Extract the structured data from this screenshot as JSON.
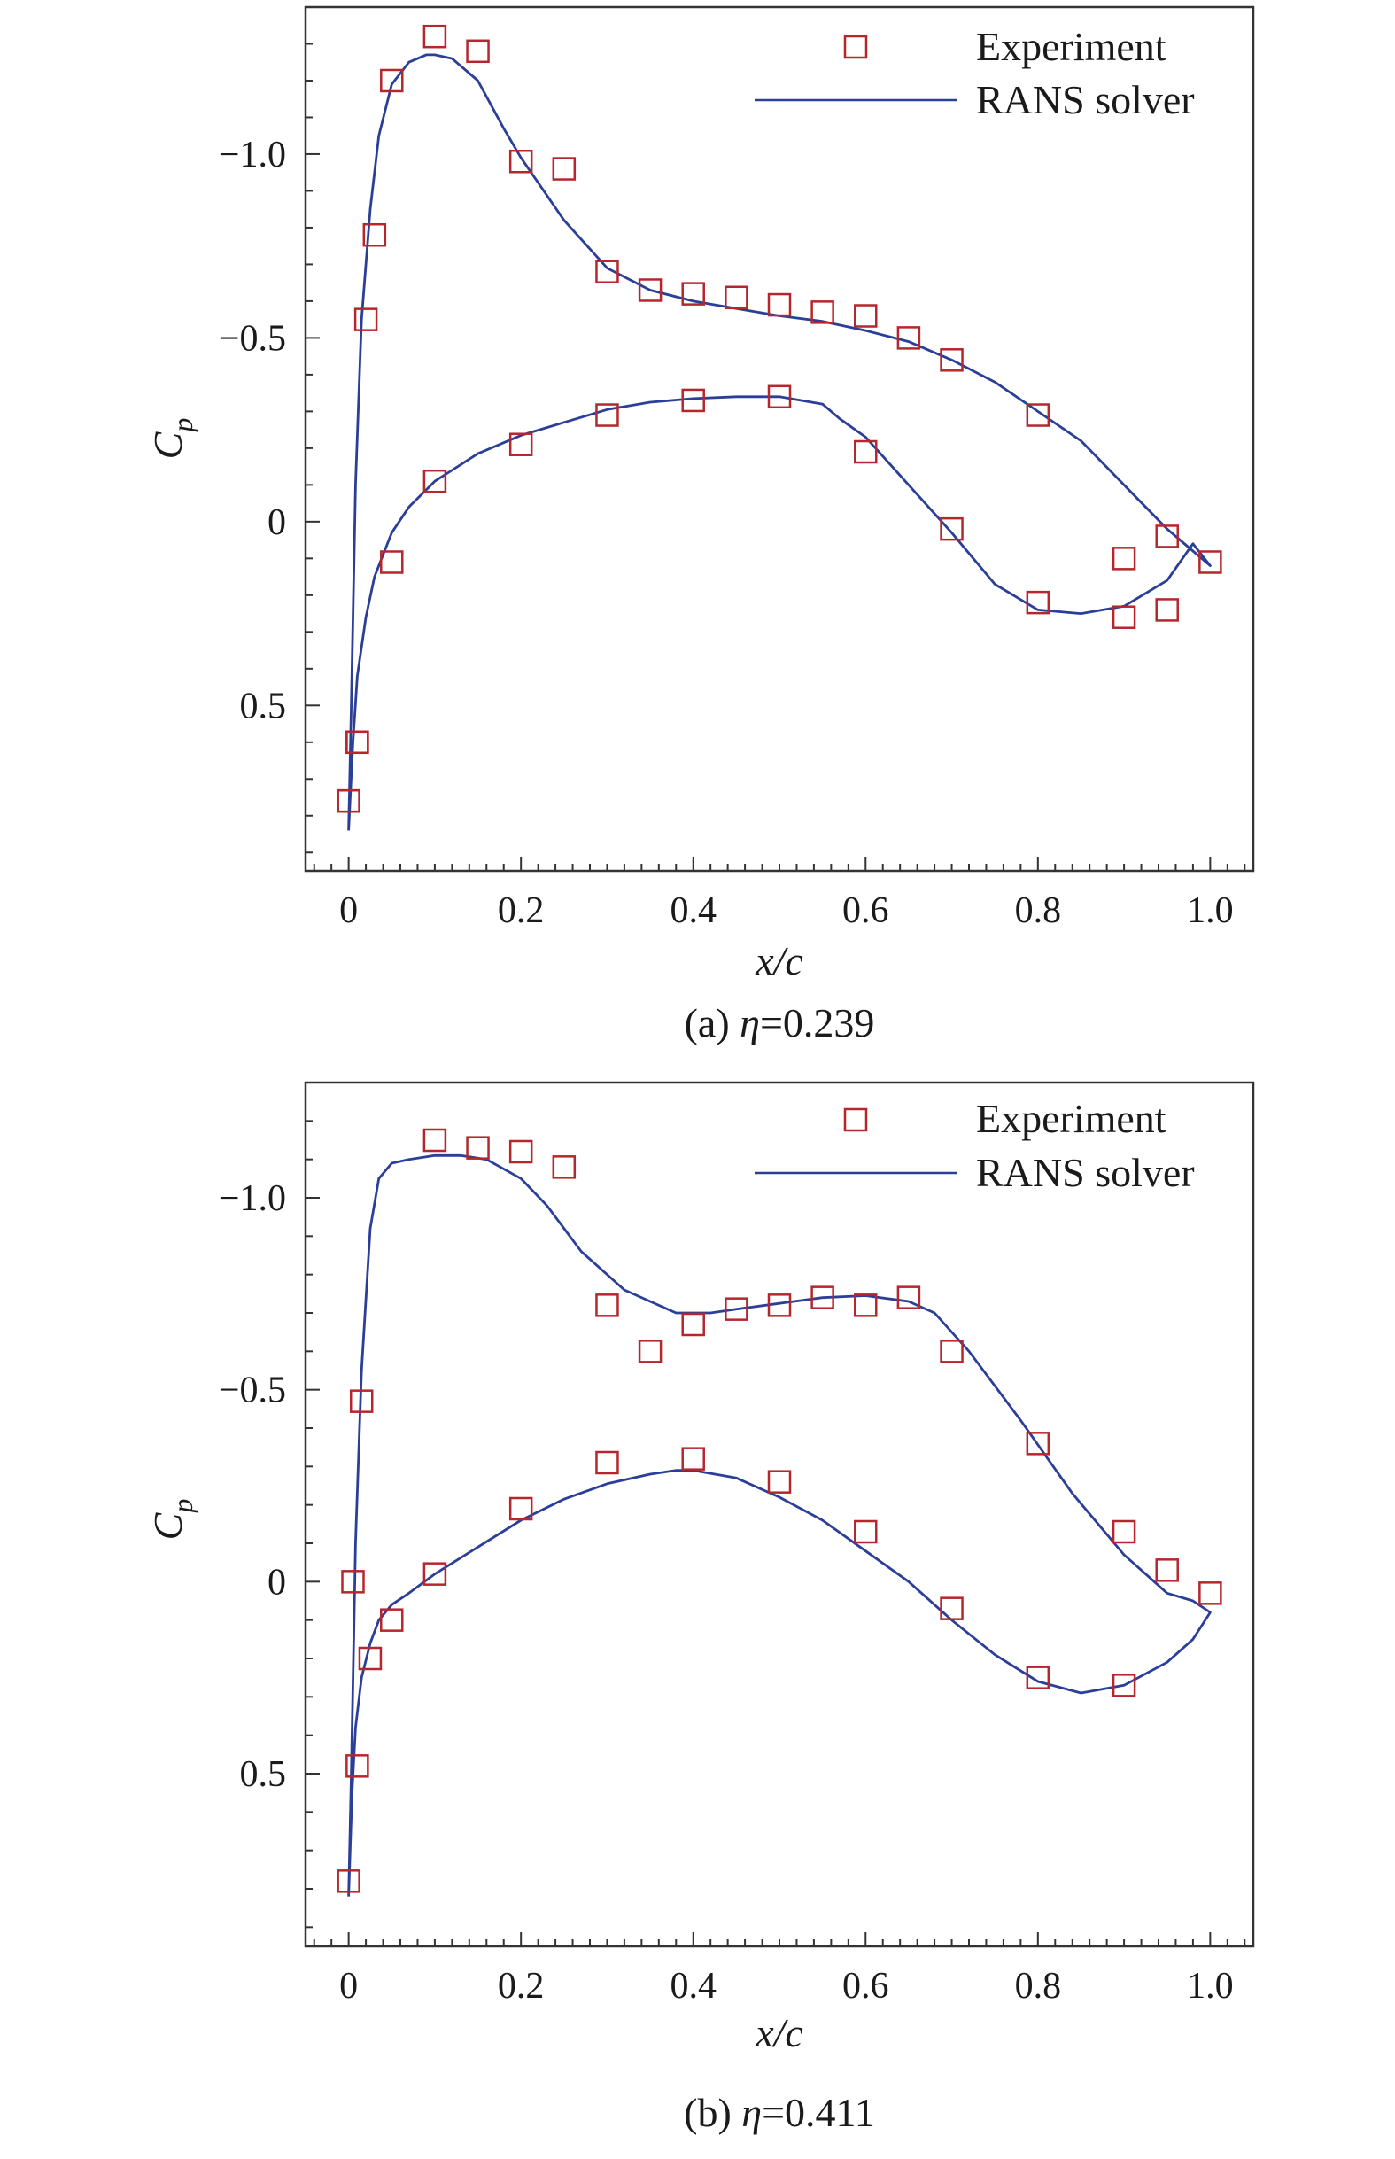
{
  "colors": {
    "experiment": "#b5272d",
    "rans": "#2b3f99",
    "axis": "#333333"
  },
  "chart_data": [
    {
      "type": "scatter",
      "caption_prefix": "(a) ",
      "caption_symbol": "η",
      "caption_value": "=0.239",
      "xlabel": "x/c",
      "ylabel_main": "C",
      "ylabel_sub": "p",
      "y_inverted": true,
      "xlim": [
        -0.05,
        1.05
      ],
      "ylim": [
        0.95,
        -1.4
      ],
      "xticks": [
        0,
        0.2,
        0.4,
        0.6,
        0.8,
        1.0
      ],
      "xtick_labels": [
        "0",
        "0.2",
        "0.4",
        "0.6",
        "0.8",
        "1.0"
      ],
      "yticks": [
        -1.0,
        -0.5,
        0,
        0.5
      ],
      "ytick_labels": [
        "−1.0",
        "−0.5",
        "0",
        "0.5"
      ],
      "legend": {
        "position": "top-right",
        "experiment": "Experiment",
        "rans": "RANS solver"
      },
      "series": [
        {
          "name": "Experiment",
          "kind": "markers",
          "x": [
            0.0,
            0.01,
            0.02,
            0.03,
            0.05,
            0.1,
            0.15,
            0.2,
            0.25,
            0.3,
            0.35,
            0.4,
            0.45,
            0.5,
            0.55,
            0.6,
            0.65,
            0.7,
            0.8,
            0.9,
            0.95,
            1.0,
            0.95,
            0.9,
            0.8,
            0.7,
            0.6,
            0.5,
            0.4,
            0.3,
            0.2,
            0.1,
            0.05,
            0.01,
            0.0
          ],
          "y": [
            0.76,
            0.6,
            -0.55,
            -0.78,
            -1.2,
            -1.32,
            -1.28,
            -0.98,
            -0.96,
            -0.68,
            -0.63,
            -0.62,
            -0.61,
            -0.59,
            -0.57,
            -0.56,
            -0.5,
            -0.44,
            -0.29,
            0.1,
            0.04,
            0.11,
            0.24,
            0.26,
            0.22,
            0.02,
            -0.19,
            -0.34,
            -0.33,
            -0.29,
            -0.21,
            -0.11,
            0.11,
            0.6,
            0.76
          ]
        },
        {
          "name": "RANS solver",
          "kind": "line",
          "x": [
            0.0,
            0.003,
            0.008,
            0.015,
            0.025,
            0.035,
            0.05,
            0.07,
            0.09,
            0.1,
            0.12,
            0.15,
            0.18,
            0.2,
            0.25,
            0.3,
            0.35,
            0.4,
            0.45,
            0.5,
            0.55,
            0.6,
            0.65,
            0.7,
            0.75,
            0.8,
            0.85,
            0.9,
            0.95,
            0.98,
            1.0,
            0.98,
            0.95,
            0.9,
            0.85,
            0.8,
            0.75,
            0.7,
            0.65,
            0.6,
            0.57,
            0.55,
            0.5,
            0.45,
            0.4,
            0.35,
            0.3,
            0.25,
            0.2,
            0.15,
            0.1,
            0.07,
            0.05,
            0.03,
            0.02,
            0.01,
            0.005,
            0.0
          ],
          "y": [
            0.84,
            0.5,
            -0.1,
            -0.55,
            -0.85,
            -1.05,
            -1.19,
            -1.25,
            -1.27,
            -1.27,
            -1.26,
            -1.2,
            -1.07,
            -0.99,
            -0.82,
            -0.69,
            -0.63,
            -0.6,
            -0.58,
            -0.56,
            -0.545,
            -0.52,
            -0.49,
            -0.44,
            -0.38,
            -0.3,
            -0.22,
            -0.1,
            0.02,
            0.08,
            0.12,
            0.06,
            0.16,
            0.23,
            0.25,
            0.24,
            0.17,
            0.03,
            -0.1,
            -0.23,
            -0.28,
            -0.32,
            -0.34,
            -0.34,
            -0.335,
            -0.325,
            -0.305,
            -0.27,
            -0.235,
            -0.185,
            -0.11,
            -0.04,
            0.03,
            0.15,
            0.26,
            0.42,
            0.6,
            0.84
          ]
        }
      ]
    },
    {
      "type": "scatter",
      "caption_prefix": "(b) ",
      "caption_symbol": "η",
      "caption_value": "=0.411",
      "xlabel": "x/c",
      "ylabel_main": "C",
      "ylabel_sub": "p",
      "y_inverted": true,
      "xlim": [
        -0.05,
        1.05
      ],
      "ylim": [
        0.95,
        -1.3
      ],
      "xticks": [
        0,
        0.2,
        0.4,
        0.6,
        0.8,
        1.0
      ],
      "xtick_labels": [
        "0",
        "0.2",
        "0.4",
        "0.6",
        "0.8",
        "1.0"
      ],
      "yticks": [
        -1.0,
        -0.5,
        0,
        0.5
      ],
      "ytick_labels": [
        "−1.0",
        "−0.5",
        "0",
        "0.5"
      ],
      "legend": {
        "position": "top-right",
        "experiment": "Experiment",
        "rans": "RANS solver"
      },
      "series": [
        {
          "name": "Experiment",
          "kind": "markers",
          "x": [
            0.0,
            0.01,
            0.015,
            0.1,
            0.15,
            0.2,
            0.25,
            0.3,
            0.35,
            0.4,
            0.45,
            0.5,
            0.55,
            0.6,
            0.65,
            0.7,
            0.8,
            0.9,
            0.95,
            1.0,
            0.9,
            0.8,
            0.7,
            0.6,
            0.5,
            0.4,
            0.3,
            0.2,
            0.1,
            0.05,
            0.025,
            0.005
          ],
          "y": [
            0.78,
            0.48,
            -0.47,
            -1.15,
            -1.13,
            -1.12,
            -1.08,
            -0.72,
            -0.6,
            -0.67,
            -0.71,
            -0.72,
            -0.74,
            -0.72,
            -0.74,
            -0.6,
            -0.36,
            -0.13,
            -0.03,
            0.03,
            0.27,
            0.25,
            0.07,
            -0.13,
            -0.26,
            -0.32,
            -0.31,
            -0.19,
            -0.02,
            0.1,
            0.2,
            0.0
          ]
        },
        {
          "name": "RANS solver",
          "kind": "line",
          "x": [
            0.0,
            0.003,
            0.008,
            0.015,
            0.025,
            0.035,
            0.05,
            0.07,
            0.1,
            0.13,
            0.16,
            0.2,
            0.23,
            0.27,
            0.32,
            0.38,
            0.42,
            0.45,
            0.5,
            0.55,
            0.6,
            0.65,
            0.68,
            0.72,
            0.78,
            0.84,
            0.9,
            0.95,
            0.98,
            1.0,
            0.98,
            0.95,
            0.9,
            0.85,
            0.8,
            0.75,
            0.7,
            0.65,
            0.6,
            0.55,
            0.5,
            0.45,
            0.4,
            0.38,
            0.35,
            0.3,
            0.25,
            0.2,
            0.15,
            0.1,
            0.07,
            0.05,
            0.035,
            0.025,
            0.015,
            0.008,
            0.004,
            0.0
          ],
          "y": [
            0.82,
            0.5,
            -0.1,
            -0.55,
            -0.92,
            -1.05,
            -1.09,
            -1.1,
            -1.11,
            -1.11,
            -1.1,
            -1.05,
            -0.98,
            -0.86,
            -0.76,
            -0.7,
            -0.7,
            -0.71,
            -0.725,
            -0.74,
            -0.745,
            -0.73,
            -0.7,
            -0.6,
            -0.42,
            -0.23,
            -0.07,
            0.03,
            0.05,
            0.08,
            0.15,
            0.21,
            0.27,
            0.29,
            0.26,
            0.19,
            0.1,
            0.0,
            -0.08,
            -0.16,
            -0.22,
            -0.27,
            -0.29,
            -0.29,
            -0.28,
            -0.255,
            -0.215,
            -0.16,
            -0.09,
            -0.02,
            0.03,
            0.06,
            0.1,
            0.16,
            0.25,
            0.38,
            0.55,
            0.82
          ]
        }
      ]
    }
  ]
}
